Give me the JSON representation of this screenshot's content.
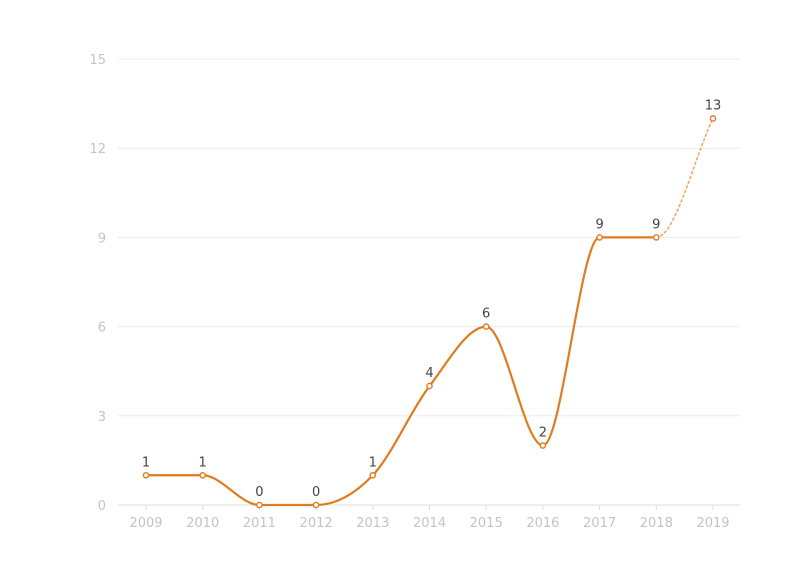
{
  "chart_data": {
    "type": "line",
    "title": "",
    "xlabel": "",
    "ylabel": "",
    "categories": [
      "2009",
      "2010",
      "2011",
      "2012",
      "2013",
      "2014",
      "2015",
      "2016",
      "2017",
      "2018",
      "2019"
    ],
    "series": [
      {
        "values": [
          1,
          1,
          0,
          0,
          1,
          4,
          6,
          2,
          9,
          9,
          13
        ],
        "color": "#e07b1f",
        "projected_from_index": 9
      }
    ],
    "ylim": [
      0,
      15
    ],
    "yticks": [
      0,
      3,
      6,
      9,
      12,
      15
    ],
    "grid": true,
    "legend": "none",
    "data_labels": true
  }
}
